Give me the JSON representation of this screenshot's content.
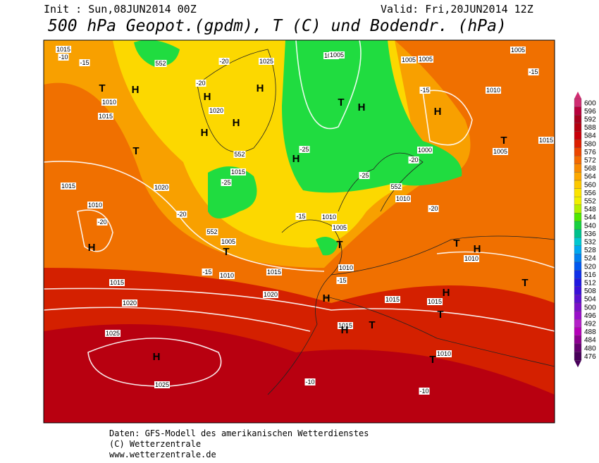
{
  "header": {
    "init": "Init : Sun,08JUN2014 00Z",
    "valid": "Valid: Fri,20JUN2014 12Z",
    "title": "500 hPa Geopot.(gpdm), T (C) und Bodendr. (hPa)"
  },
  "map": {
    "labels": [
      "1015",
      "-10",
      "-15",
      "552",
      "-20",
      "1025",
      "1005",
      "1005",
      "1005",
      "-15",
      "-15",
      "1010",
      "1010",
      "1015",
      "-20",
      "1020",
      "-25",
      "552",
      "1015",
      "1020",
      "-25",
      "1000",
      "1005",
      "-25",
      "552",
      "1010",
      "-20",
      "1015",
      "1010",
      "-20",
      "-20",
      "552",
      "1010",
      "1005",
      "1005",
      "1015",
      "1010",
      "-15",
      "1010",
      "-15",
      "1015",
      "1020",
      "1020",
      "1015",
      "1015",
      "1015",
      "1025",
      "1010",
      "1025",
      "-10",
      "-10",
      "1010",
      "1015",
      "1005",
      "-15",
      "-20",
      "1005"
    ],
    "markers": [
      "T",
      "H",
      "H",
      "H",
      "T",
      "H",
      "H",
      "T",
      "H",
      "H",
      "T",
      "H",
      "T",
      "T",
      "T",
      "H",
      "T",
      "H",
      "H",
      "T",
      "H",
      "T",
      "H",
      "T",
      "H"
    ]
  },
  "colorbar": {
    "values": [
      600,
      596,
      592,
      588,
      584,
      580,
      576,
      572,
      568,
      564,
      560,
      556,
      552,
      548,
      544,
      540,
      536,
      532,
      528,
      524,
      520,
      516,
      512,
      508,
      504,
      500,
      496,
      492,
      488,
      484,
      480,
      476
    ],
    "colors": [
      "#d02c72",
      "#b8003c",
      "#a8001e",
      "#b40010",
      "#c8000a",
      "#dc1e00",
      "#ec4600",
      "#f46a00",
      "#f88a00",
      "#fca800",
      "#fcc800",
      "#fce400",
      "#f0f000",
      "#b4f000",
      "#50e800",
      "#18d040",
      "#00c08c",
      "#00c8d0",
      "#00a8f0",
      "#0080f0",
      "#0058f0",
      "#1030e8",
      "#2018e0",
      "#3a10d8",
      "#5a10d0",
      "#7a10c8",
      "#9810c8",
      "#b420c8",
      "#b400b8",
      "#8c0090",
      "#640070",
      "#48005a"
    ]
  },
  "footer": {
    "line1": "Daten: GFS-Modell des amerikanischen Wetterdienstes",
    "line2": "(C) Wetterzentrale",
    "line3": "www.wetterzentrale.de"
  }
}
